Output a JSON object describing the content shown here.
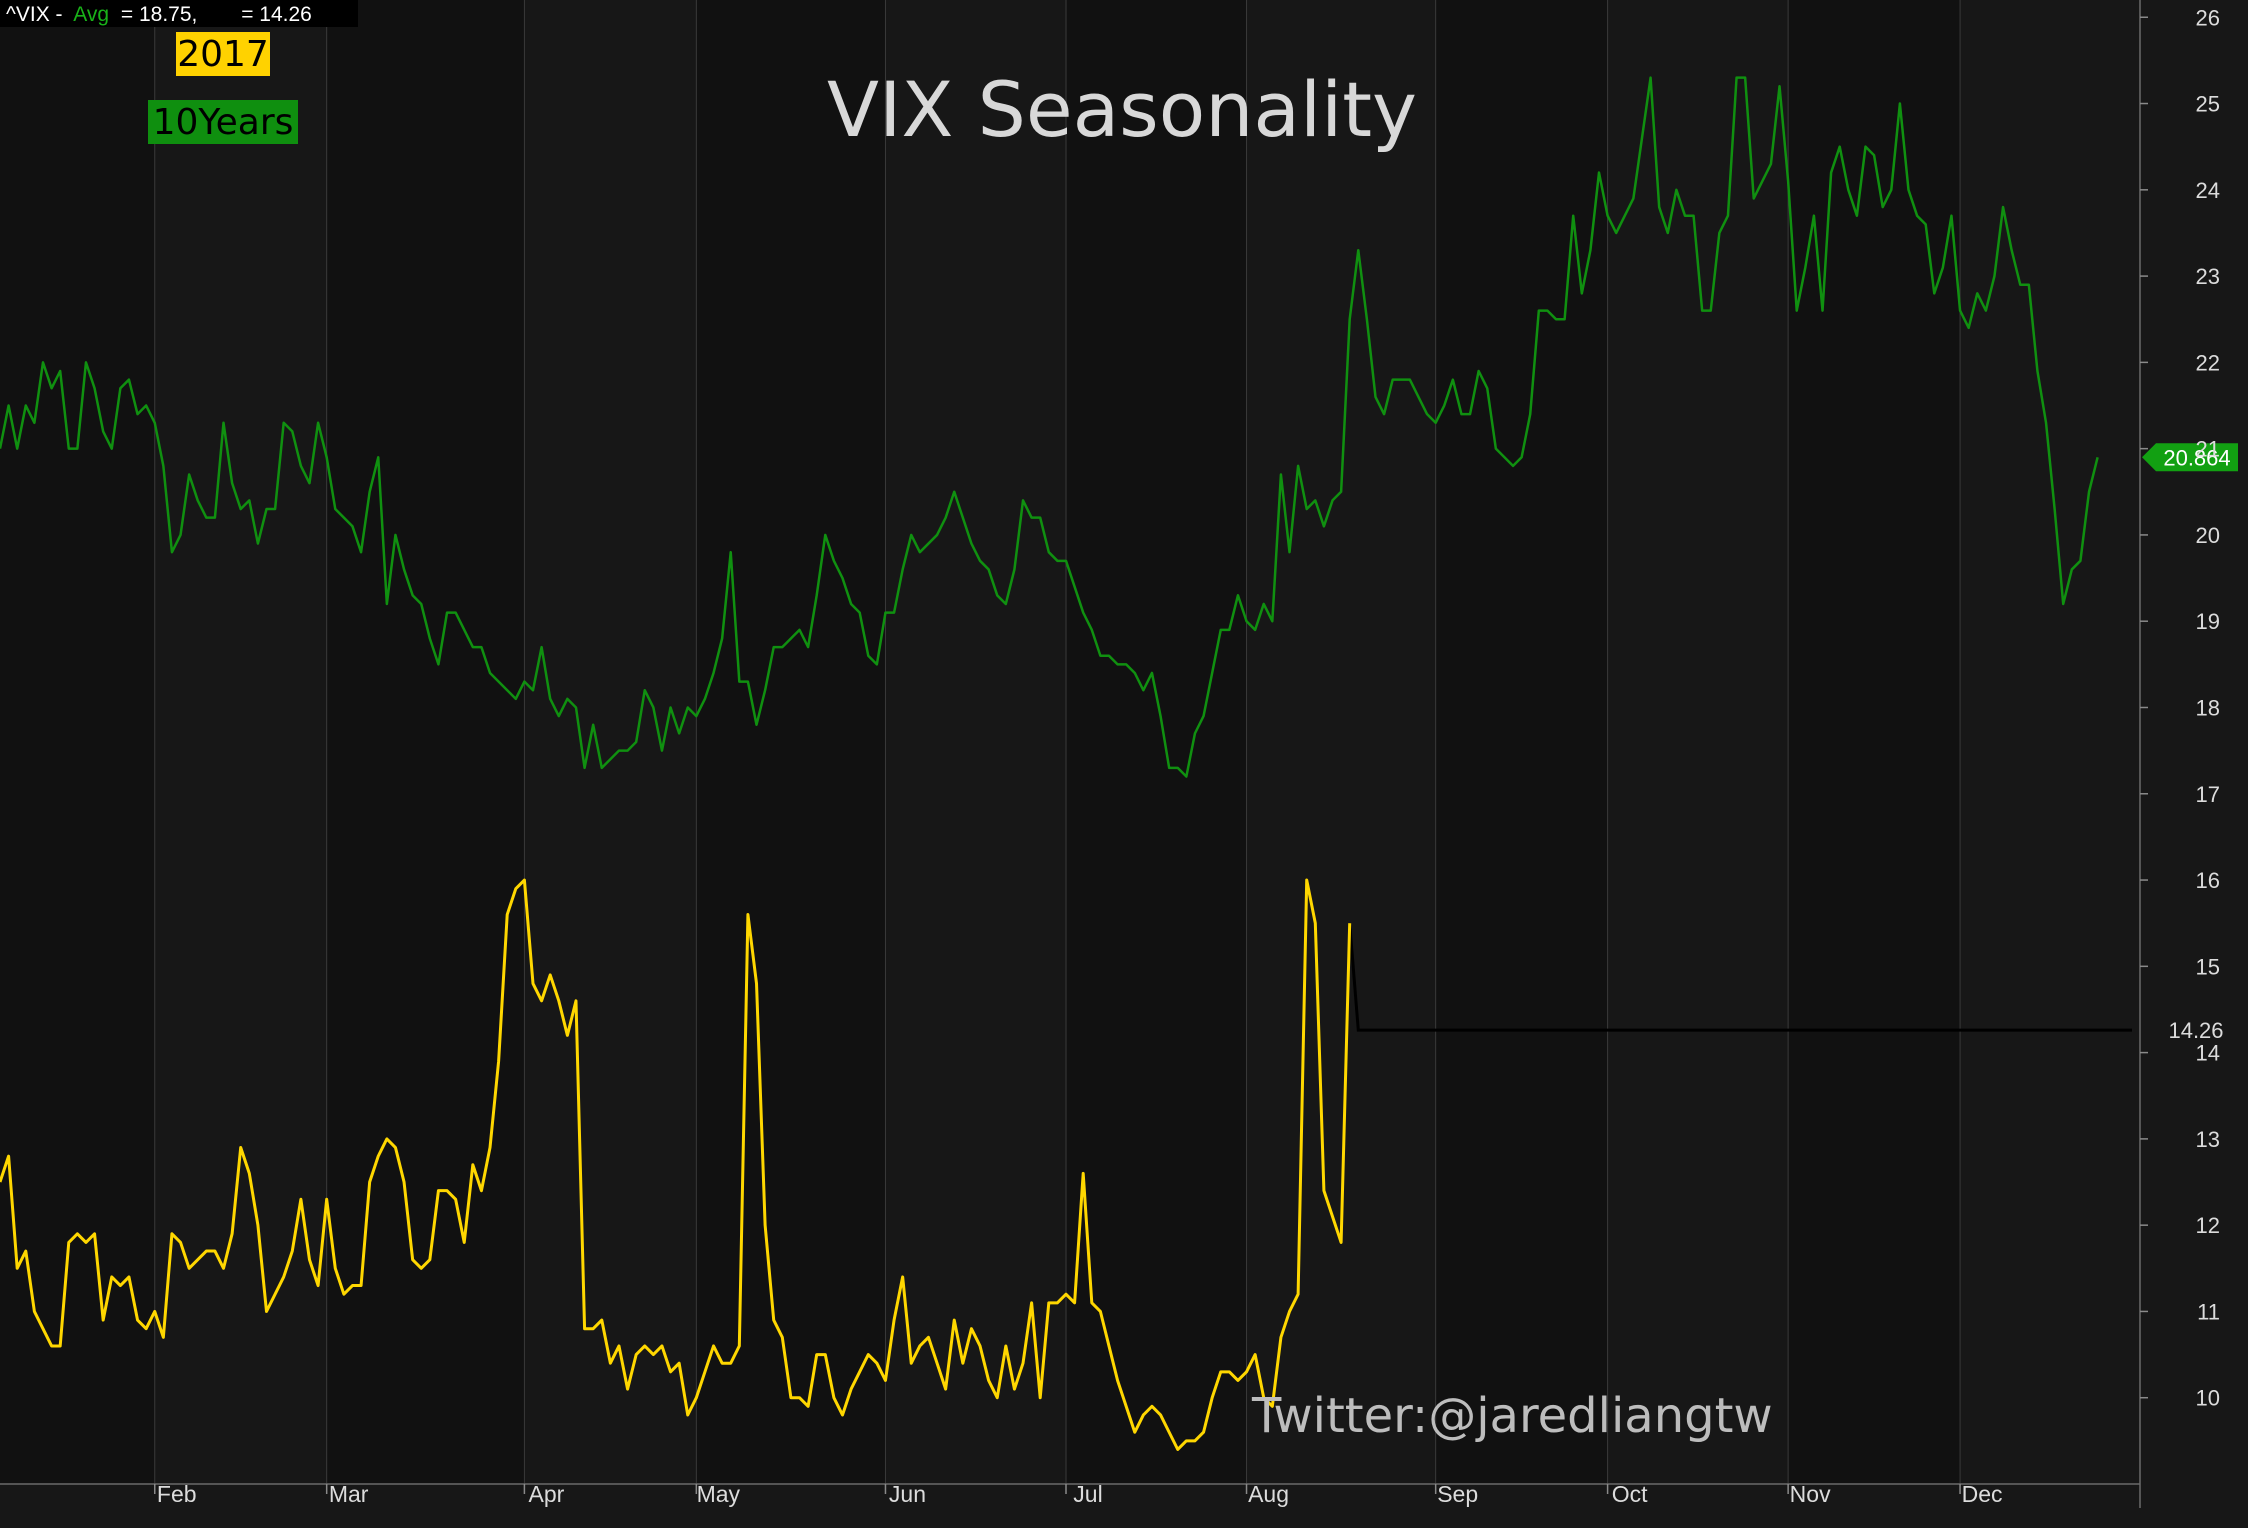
{
  "chart_data": {
    "type": "line",
    "title": "VIX Seasonality",
    "header": {
      "symbol": "^VIX -",
      "avg_label": "Avg",
      "avg_text": "= 18.75,",
      "last_text": "= 14.26"
    },
    "legend": [
      {
        "label": "2017",
        "bg": "#ffd200",
        "fg": "#000000"
      },
      {
        "label": "10Years",
        "bg": "#0f8f0f",
        "fg": "#000000"
      }
    ],
    "watermark": "Twitter:@jaredliangtw",
    "x_tick_labels": [
      "Feb",
      "Mar",
      "Apr",
      "May",
      "Jun",
      "Jul",
      "Aug",
      "Sep",
      "Oct",
      "Nov",
      "Dec"
    ],
    "y_ticks": [
      "10",
      "11",
      "12",
      "13",
      "14",
      "15",
      "16",
      "17",
      "18",
      "19",
      "20",
      "21",
      "22",
      "23",
      "24",
      "25",
      "26"
    ],
    "ylim": [
      9,
      26.2
    ],
    "xlim": [
      0,
      248
    ],
    "colors": {
      "background": "#171717",
      "band_dark": "#111111",
      "grid": "#3a3a3a",
      "ten_year": "#109010",
      "y2017": "#ffd700",
      "flat_line": "#000000"
    },
    "series": [
      {
        "name": "10Years",
        "color": "#109010",
        "last_label": "20.864",
        "values": [
          21.0,
          21.5,
          21.0,
          21.5,
          21.3,
          22.0,
          21.7,
          21.9,
          21.0,
          21.0,
          22.0,
          21.7,
          21.2,
          21.0,
          21.7,
          21.8,
          21.4,
          21.5,
          21.3,
          20.8,
          19.8,
          20.0,
          20.7,
          20.4,
          20.2,
          20.2,
          21.3,
          20.6,
          20.3,
          20.4,
          19.9,
          20.3,
          20.3,
          21.3,
          21.2,
          20.8,
          20.6,
          21.3,
          20.9,
          20.3,
          20.2,
          20.1,
          19.8,
          20.5,
          20.9,
          19.2,
          20.0,
          19.6,
          19.3,
          19.2,
          18.8,
          18.5,
          19.1,
          19.1,
          18.9,
          18.7,
          18.7,
          18.4,
          18.3,
          18.2,
          18.1,
          18.3,
          18.2,
          18.7,
          18.1,
          17.9,
          18.1,
          18.0,
          17.3,
          17.8,
          17.3,
          17.4,
          17.5,
          17.5,
          17.6,
          18.2,
          18.0,
          17.5,
          18.0,
          17.7,
          18.0,
          17.9,
          18.1,
          18.4,
          18.8,
          19.8,
          18.3,
          18.3,
          17.8,
          18.2,
          18.7,
          18.7,
          18.8,
          18.9,
          18.7,
          19.3,
          20.0,
          19.7,
          19.5,
          19.2,
          19.1,
          18.6,
          18.5,
          19.1,
          19.1,
          19.6,
          20.0,
          19.8,
          19.9,
          20.0,
          20.2,
          20.5,
          20.2,
          19.9,
          19.7,
          19.6,
          19.3,
          19.2,
          19.6,
          20.4,
          20.2,
          20.2,
          19.8,
          19.7,
          19.7,
          19.4,
          19.1,
          18.9,
          18.6,
          18.6,
          18.5,
          18.5,
          18.4,
          18.2,
          18.4,
          17.9,
          17.3,
          17.3,
          17.2,
          17.7,
          17.9,
          18.4,
          18.9,
          18.9,
          19.3,
          19.0,
          18.9,
          19.2,
          19.0,
          20.7,
          19.8,
          20.8,
          20.3,
          20.4,
          20.1,
          20.4,
          20.5,
          22.5,
          23.3,
          22.5,
          21.6,
          21.4,
          21.8,
          21.8,
          21.8,
          21.6,
          21.4,
          21.3,
          21.5,
          21.8,
          21.4,
          21.4,
          21.9,
          21.7,
          21.0,
          20.9,
          20.8,
          20.9,
          21.4,
          22.6,
          22.6,
          22.5,
          22.5,
          23.7,
          22.8,
          23.3,
          24.2,
          23.7,
          23.5,
          23.7,
          23.9,
          24.6,
          25.3,
          23.8,
          23.5,
          24.0,
          23.7,
          23.7,
          22.6,
          22.6,
          23.5,
          23.7,
          25.3,
          25.3,
          23.9,
          24.1,
          24.3,
          25.2,
          24.1,
          22.6,
          23.1,
          23.7,
          22.6,
          24.2,
          24.5,
          24.0,
          23.7,
          24.5,
          24.4,
          23.8,
          24.0,
          25.0,
          24.0,
          23.7,
          23.6,
          22.8,
          23.1,
          23.7,
          22.6,
          22.4,
          22.8,
          22.6,
          23.0,
          23.8,
          23.3,
          22.9,
          22.9,
          21.9,
          21.3,
          20.3,
          19.2,
          19.6,
          19.7,
          20.5,
          20.9
        ]
      },
      {
        "name": "2017",
        "color": "#ffd700",
        "values": [
          12.5,
          12.8,
          11.5,
          11.7,
          11.0,
          10.8,
          10.6,
          10.6,
          11.8,
          11.9,
          11.8,
          11.9,
          10.9,
          11.4,
          11.3,
          11.4,
          10.9,
          10.8,
          11.0,
          10.7,
          11.9,
          11.8,
          11.5,
          11.6,
          11.7,
          11.7,
          11.5,
          11.9,
          12.9,
          12.6,
          12.0,
          11.0,
          11.2,
          11.4,
          11.7,
          12.3,
          11.6,
          11.3,
          12.3,
          11.5,
          11.2,
          11.3,
          11.3,
          12.5,
          12.8,
          13.0,
          12.9,
          12.5,
          11.6,
          11.5,
          11.6,
          12.4,
          12.4,
          12.3,
          11.8,
          12.7,
          12.4,
          12.9,
          13.9,
          15.6,
          15.9,
          16.0,
          14.8,
          14.6,
          14.9,
          14.6,
          14.2,
          14.6,
          10.8,
          10.8,
          10.9,
          10.4,
          10.6,
          10.1,
          10.5,
          10.6,
          10.5,
          10.6,
          10.3,
          10.4,
          9.8,
          10.0,
          10.3,
          10.6,
          10.4,
          10.4,
          10.6,
          15.6,
          14.8,
          12.0,
          10.9,
          10.7,
          10.0,
          10.0,
          9.9,
          10.5,
          10.5,
          10.0,
          9.8,
          10.1,
          10.3,
          10.5,
          10.4,
          10.2,
          10.9,
          11.4,
          10.4,
          10.6,
          10.7,
          10.4,
          10.1,
          10.9,
          10.4,
          10.8,
          10.6,
          10.2,
          10.0,
          10.6,
          10.1,
          10.4,
          11.1,
          10.0,
          11.1,
          11.1,
          11.2,
          11.1,
          12.6,
          11.1,
          11.0,
          10.6,
          10.2,
          9.9,
          9.6,
          9.8,
          9.9,
          9.8,
          9.6,
          9.4,
          9.5,
          9.5,
          9.6,
          10.0,
          10.3,
          10.3,
          10.2,
          10.3,
          10.5,
          10.0,
          9.9,
          10.7,
          11.0,
          11.2,
          16.0,
          15.5,
          12.4,
          12.1,
          11.8,
          15.5
        ]
      }
    ],
    "flat_line": {
      "value": 14.26,
      "label": "14.26"
    }
  }
}
